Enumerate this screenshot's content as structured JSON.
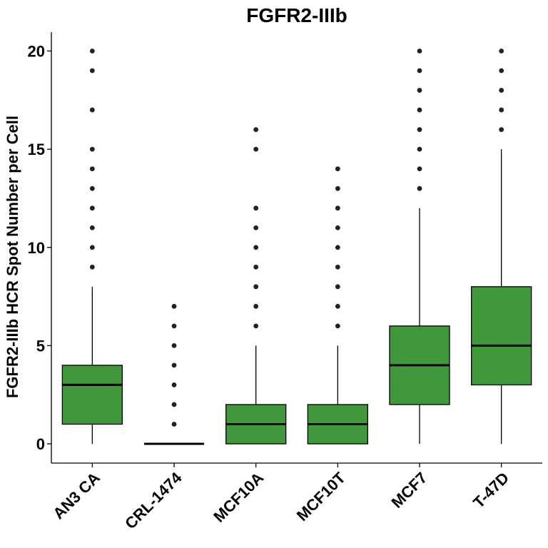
{
  "chart_data": {
    "type": "boxplot",
    "title": "FGFR2-IIIb",
    "xlabel": "",
    "ylabel": "FGFR2-IIIb HCR Spot Number per Cell",
    "ylim": [
      -1,
      21
    ],
    "yticks": [
      0,
      5,
      10,
      15,
      20
    ],
    "ytick_labels": [
      "0",
      "5",
      "10",
      "15",
      "20"
    ],
    "box_color": "#3f993a",
    "grid": false,
    "legend": "none",
    "categories": [
      "AN3 CA",
      "CRL-1474",
      "MCF10A",
      "MCF10T",
      "MCF7",
      "T-47D"
    ],
    "boxes": [
      {
        "category": "AN3 CA",
        "min": 0,
        "q1": 1,
        "median": 3,
        "q3": 4,
        "max": 8,
        "outliers": [
          9,
          10,
          11,
          12,
          13,
          14,
          15,
          17,
          19,
          20
        ]
      },
      {
        "category": "CRL-1474",
        "min": 0,
        "q1": 0,
        "median": 0,
        "q3": 0,
        "max": 0,
        "outliers": [
          1,
          2,
          3,
          4,
          5,
          6,
          7
        ]
      },
      {
        "category": "MCF10A",
        "min": 0,
        "q1": 0,
        "median": 1,
        "q3": 2,
        "max": 5,
        "outliers": [
          6,
          7,
          8,
          9,
          10,
          11,
          12,
          15,
          16
        ]
      },
      {
        "category": "MCF10T",
        "min": 0,
        "q1": 0,
        "median": 1,
        "q3": 2,
        "max": 5,
        "outliers": [
          6,
          7,
          8,
          9,
          10,
          11,
          12,
          13,
          14
        ]
      },
      {
        "category": "MCF7",
        "min": 0,
        "q1": 2,
        "median": 4,
        "q3": 6,
        "max": 12,
        "outliers": [
          13,
          14,
          15,
          16,
          17,
          18,
          19,
          20
        ]
      },
      {
        "category": "T-47D",
        "min": 0,
        "q1": 3,
        "median": 5,
        "q3": 8,
        "max": 15,
        "outliers": [
          16,
          17,
          18,
          19,
          20
        ]
      }
    ]
  }
}
